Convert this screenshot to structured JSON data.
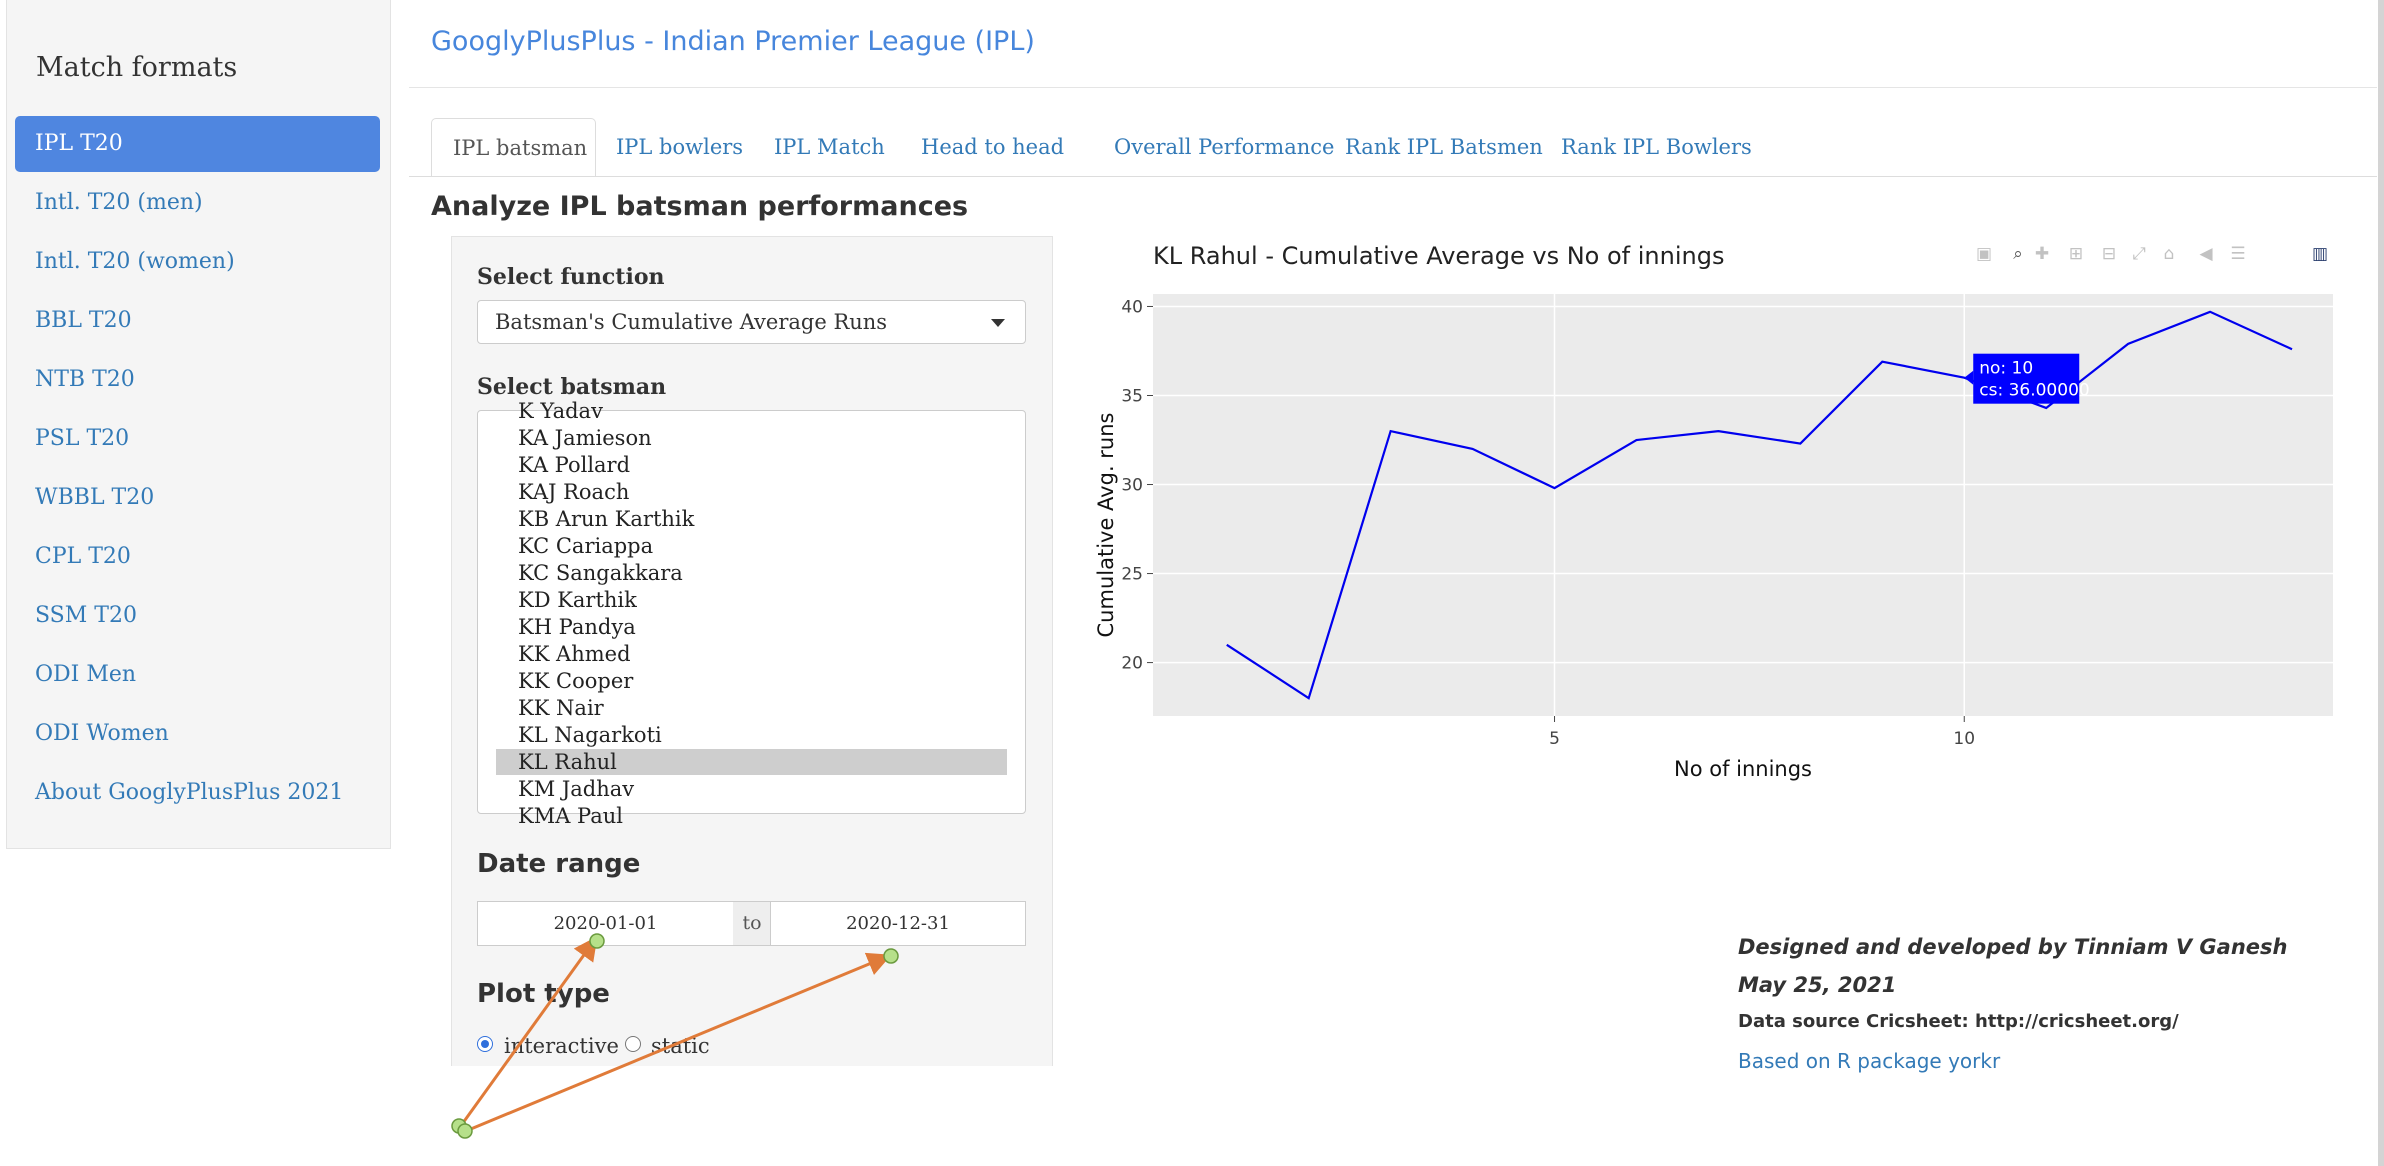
{
  "sidebar": {
    "title": "Match formats",
    "items": [
      {
        "label": "IPL T20",
        "active": true
      },
      {
        "label": "Intl. T20 (men)"
      },
      {
        "label": "Intl. T20 (women)"
      },
      {
        "label": "BBL T20"
      },
      {
        "label": "NTB T20"
      },
      {
        "label": "PSL T20"
      },
      {
        "label": "WBBL T20"
      },
      {
        "label": "CPL T20"
      },
      {
        "label": "SSM T20"
      },
      {
        "label": "ODI Men"
      },
      {
        "label": "ODI Women"
      },
      {
        "label": "About GooglyPlusPlus 2021"
      }
    ]
  },
  "header": {
    "title": "GooglyPlusPlus - Indian Premier League (IPL)"
  },
  "tabs": [
    {
      "label": "IPL batsman",
      "active": true
    },
    {
      "label": "IPL bowlers"
    },
    {
      "label": "IPL Match"
    },
    {
      "label": "Head to head"
    },
    {
      "label": "Overall Performance"
    },
    {
      "label": "Rank IPL Batsmen"
    },
    {
      "label": "Rank IPL Bowlers"
    }
  ],
  "main": {
    "section_title": "Analyze IPL batsman performances",
    "function_label": "Select function",
    "function_value": "Batsman's Cumulative Average Runs",
    "batsman_label": "Select batsman",
    "batsmen": [
      "K Yadav",
      "KA Jamieson",
      "KA Pollard",
      "KAJ Roach",
      "KB Arun Karthik",
      "KC Cariappa",
      "KC Sangakkara",
      "KD Karthik",
      "KH Pandya",
      "KK Ahmed",
      "KK Cooper",
      "KK Nair",
      "KL Nagarkoti",
      "KL Rahul",
      "KM Jadhav",
      "KMA Paul"
    ],
    "selected_batsman": "KL Rahul",
    "date_range_label": "Date range",
    "date_start": "2020-01-01",
    "date_sep": "to",
    "date_end": "2020-12-31",
    "plot_type_label": "Plot type",
    "plot_types": [
      {
        "label": "interactive",
        "checked": true
      },
      {
        "label": "static",
        "checked": false
      }
    ]
  },
  "modebar_icons": [
    "camera-icon",
    "zoom-icon",
    "pan-icon",
    "zoom-in-icon",
    "zoom-out-icon",
    "autoscale-icon",
    "reset-axes-icon",
    "hover-closest-icon",
    "hover-compare-icon",
    "plotly-logo-icon"
  ],
  "chart_data": {
    "type": "line",
    "title": "KL Rahul - Cumulative Average vs No of innings",
    "xlabel": "No of innings",
    "ylabel": "Cumulative Avg. runs",
    "x": [
      1,
      2,
      3,
      4,
      5,
      6,
      7,
      8,
      9,
      10,
      11,
      12,
      13,
      14
    ],
    "y": [
      21.0,
      18.0,
      33.0,
      32.0,
      29.8,
      32.5,
      33.0,
      32.3,
      36.9,
      36.0,
      34.3,
      37.9,
      39.7,
      37.6
    ],
    "xticks": [
      5,
      10
    ],
    "yticks": [
      20,
      25,
      30,
      35,
      40
    ],
    "xlim": [
      0.1,
      14.5
    ],
    "ylim": [
      17,
      40.7
    ],
    "grid": true,
    "line_color": "#0000ee",
    "plot_bg": "#ebebeb",
    "tooltip": {
      "x": 10,
      "line1": "no: 10",
      "line2": "cs: 36.00000"
    }
  },
  "footer": {
    "designed_by": "Designed and developed by Tinniam V Ganesh",
    "date": "May 25, 2021",
    "data_source": "Data source Cricsheet: http://cricsheet.org/",
    "package_link": "Based on R package yorkr"
  },
  "colors": {
    "accent": "#4f86e0",
    "link": "#337ab7",
    "annotation_arrow": "#e07b39",
    "annotation_dot": "#b6e08a"
  }
}
